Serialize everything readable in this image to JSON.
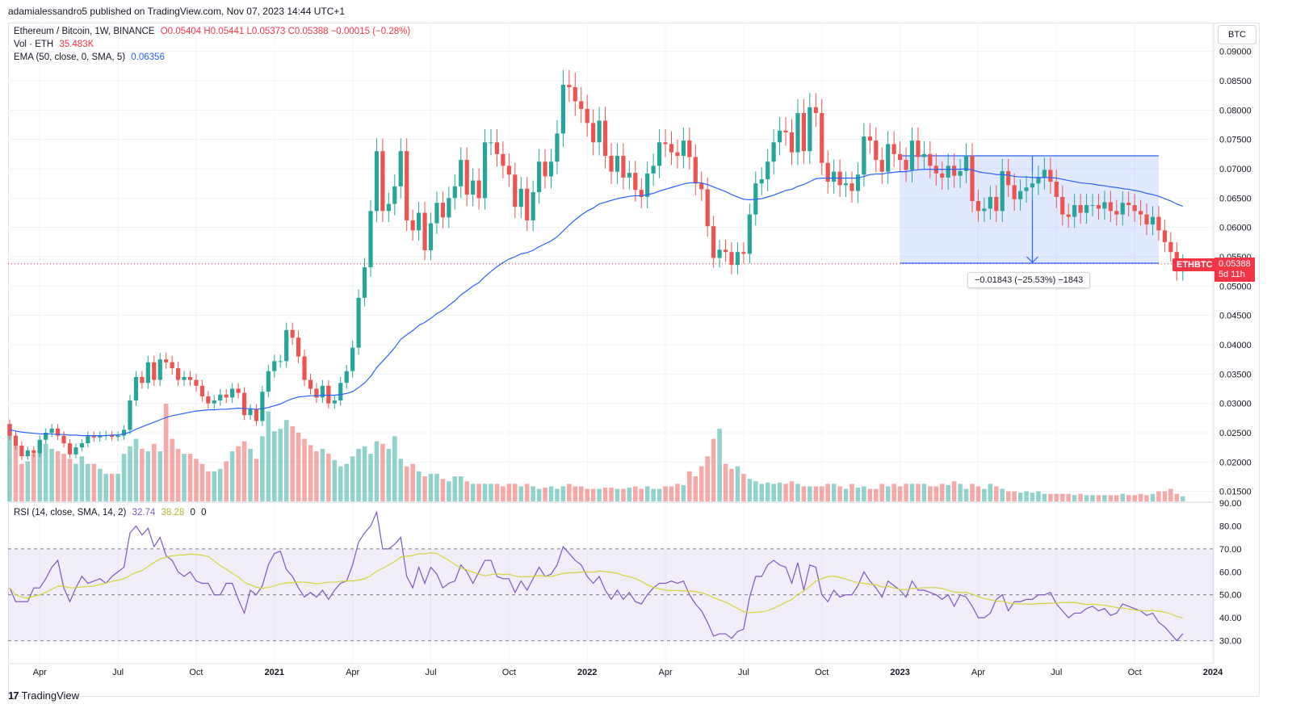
{
  "header": {
    "publish_line": "adamialessandro5 published on TradingView.com, Nov 07, 2023 14:44 UTC+1"
  },
  "legend": {
    "symbol": "Ethereum / Bitcoin, 1W, BINANCE",
    "ohlc": "O0.05404 H0.05441 L0.05373 C0.05388 −0.00015 (−0.28%)",
    "vol_label": "Vol · ETH",
    "vol_value": "35.483K",
    "ema_label": "EMA (50, close, 0, SMA, 5)",
    "ema_value": "0.06356",
    "rsi_label": "RSI (14, close, SMA, 14, 2)",
    "rsi_value": "32.74",
    "rsi_ma_value": "38.28",
    "rsi_extra_1": "0",
    "rsi_extra_2": "0"
  },
  "currency_button": "BTC",
  "price_tags": {
    "symbol": "ETHBTC",
    "price": "0.05388",
    "countdown": "5d 11h"
  },
  "measure_label": "−0.01843 (−25.53%) −1843",
  "branding": {
    "logo_text": "TradingView"
  },
  "colors": {
    "up": "#26a69a",
    "down": "#ef5350",
    "ema": "#2962ff",
    "rsi": "#7e57c2",
    "rsi_ma": "#d4d43a",
    "range_fill": "#2962ff"
  },
  "chart_data": {
    "type": "candlestick",
    "price_axis": {
      "ticks": [
        "0.09000",
        "0.08500",
        "0.08000",
        "0.07500",
        "0.07000",
        "0.06500",
        "0.06000",
        "0.05500",
        "0.05000",
        "0.04500",
        "0.04000",
        "0.03500",
        "0.03000",
        "0.02500",
        "0.02000",
        "0.01500"
      ],
      "range": [
        0.0133,
        0.0967
      ]
    },
    "rsi_axis": {
      "ticks": [
        "90.00",
        "80.00",
        "70.00",
        "60.00",
        "50.00",
        "40.00",
        "30.00"
      ],
      "range": [
        20,
        90
      ],
      "bands": [
        30,
        50,
        70
      ]
    },
    "time_axis": {
      "labels": [
        "Apr",
        "Jul",
        "Oct",
        "2021",
        "Apr",
        "Jul",
        "Oct",
        "2022",
        "Apr",
        "Jul",
        "Oct",
        "2023",
        "Apr",
        "Jul",
        "Oct",
        "2024"
      ],
      "week_index": [
        5,
        18,
        31,
        44,
        57,
        70,
        83,
        96,
        109,
        122,
        135,
        148,
        161,
        174,
        187,
        200
      ]
    },
    "close": [
      0.0245,
      0.0228,
      0.021,
      0.022,
      0.0215,
      0.0238,
      0.025,
      0.0257,
      0.0245,
      0.0232,
      0.0213,
      0.0225,
      0.0232,
      0.0245,
      0.0242,
      0.0245,
      0.0246,
      0.0243,
      0.0245,
      0.0255,
      0.0305,
      0.0345,
      0.0335,
      0.037,
      0.034,
      0.0375,
      0.037,
      0.036,
      0.034,
      0.0345,
      0.034,
      0.033,
      0.0312,
      0.03,
      0.0305,
      0.0315,
      0.031,
      0.0325,
      0.0318,
      0.028,
      0.029,
      0.027,
      0.032,
      0.0355,
      0.0372,
      0.0372,
      0.0425,
      0.0412,
      0.038,
      0.034,
      0.0325,
      0.031,
      0.033,
      0.03,
      0.0305,
      0.0335,
      0.0355,
      0.0395,
      0.048,
      0.0532,
      0.0628,
      0.073,
      0.0628,
      0.064,
      0.067,
      0.073,
      0.0612,
      0.0595,
      0.0625,
      0.0561,
      0.0607,
      0.0642,
      0.0617,
      0.065,
      0.067,
      0.0715,
      0.0656,
      0.068,
      0.065,
      0.0745,
      0.0745,
      0.0725,
      0.0705,
      0.069,
      0.0635,
      0.0666,
      0.0612,
      0.066,
      0.0712,
      0.0687,
      0.0712,
      0.076,
      0.0843,
      0.0839,
      0.0815,
      0.0802,
      0.0778,
      0.0745,
      0.0782,
      0.0722,
      0.0695,
      0.0722,
      0.0685,
      0.0693,
      0.0664,
      0.0652,
      0.0692,
      0.0705,
      0.0745,
      0.0742,
      0.0728,
      0.0722,
      0.0748,
      0.072,
      0.0675,
      0.0665,
      0.0602,
      0.0548,
      0.0562,
      0.0558,
      0.0536,
      0.0558,
      0.0555,
      0.0622,
      0.0675,
      0.0682,
      0.0712,
      0.0745,
      0.0765,
      0.0762,
      0.0728,
      0.0795,
      0.073,
      0.0805,
      0.0795,
      0.071,
      0.0678,
      0.0695,
      0.0672,
      0.0675,
      0.0662,
      0.069,
      0.0755,
      0.0748,
      0.0715,
      0.0695,
      0.0742,
      0.0725,
      0.0715,
      0.0698,
      0.0748,
      0.072,
      0.0725,
      0.0705,
      0.0692,
      0.0685,
      0.0705,
      0.0688,
      0.0696,
      0.0722,
      0.0645,
      0.0628,
      0.0632,
      0.0652,
      0.0628,
      0.0696,
      0.0672,
      0.0648,
      0.0662,
      0.0668,
      0.0675,
      0.0685,
      0.0698,
      0.0678,
      0.0652,
      0.0622,
      0.0618,
      0.0638,
      0.0625,
      0.0638,
      0.0638,
      0.0632,
      0.0643,
      0.0628,
      0.0622,
      0.0642,
      0.0638,
      0.0628,
      0.0622,
      0.0605,
      0.0618,
      0.0595,
      0.0575,
      0.0558,
      0.0525,
      0.0538
    ],
    "ema": [
      0.0255,
      0.0253,
      0.0251,
      0.025,
      0.0249,
      0.0248,
      0.0248,
      0.0248,
      0.0247,
      0.0247,
      0.0246,
      0.0246,
      0.0245,
      0.0245,
      0.0245,
      0.0245,
      0.0245,
      0.0246,
      0.0246,
      0.0248,
      0.0251,
      0.0256,
      0.026,
      0.0264,
      0.0268,
      0.0272,
      0.0276,
      0.0279,
      0.0281,
      0.0283,
      0.0285,
      0.0287,
      0.0288,
      0.0289,
      0.0289,
      0.029,
      0.029,
      0.0291,
      0.0292,
      0.0291,
      0.0291,
      0.029,
      0.0291,
      0.0293,
      0.0296,
      0.0299,
      0.0304,
      0.0308,
      0.0311,
      0.0312,
      0.0313,
      0.0313,
      0.0314,
      0.0314,
      0.0314,
      0.0315,
      0.0317,
      0.032,
      0.0327,
      0.0335,
      0.0346,
      0.0361,
      0.0372,
      0.0383,
      0.0395,
      0.0409,
      0.0417,
      0.0424,
      0.0433,
      0.0438,
      0.0445,
      0.0453,
      0.0459,
      0.0467,
      0.0475,
      0.0485,
      0.0492,
      0.05,
      0.0506,
      0.0516,
      0.0525,
      0.0533,
      0.054,
      0.0546,
      0.055,
      0.0555,
      0.0557,
      0.0561,
      0.0567,
      0.0572,
      0.0577,
      0.0584,
      0.0594,
      0.0604,
      0.0613,
      0.0621,
      0.0628,
      0.0633,
      0.064,
      0.0643,
      0.0646,
      0.0649,
      0.0651,
      0.0653,
      0.0654,
      0.0654,
      0.0656,
      0.0658,
      0.0662,
      0.0665,
      0.0668,
      0.0671,
      0.0674,
      0.0676,
      0.0676,
      0.0676,
      0.0673,
      0.0669,
      0.0665,
      0.0661,
      0.0656,
      0.0652,
      0.0648,
      0.0647,
      0.0648,
      0.0649,
      0.0652,
      0.0655,
      0.0659,
      0.0663,
      0.0665,
      0.067,
      0.0673,
      0.0678,
      0.0683,
      0.0684,
      0.0684,
      0.0684,
      0.0684,
      0.0684,
      0.0684,
      0.0684,
      0.0687,
      0.069,
      0.0691,
      0.0691,
      0.0693,
      0.0694,
      0.0695,
      0.0695,
      0.0697,
      0.0698,
      0.0699,
      0.0699,
      0.0699,
      0.0699,
      0.0699,
      0.0699,
      0.0699,
      0.07,
      0.0698,
      0.0695,
      0.0693,
      0.0692,
      0.069,
      0.069,
      0.0689,
      0.0687,
      0.0686,
      0.0686,
      0.0685,
      0.0685,
      0.0685,
      0.0685,
      0.0684,
      0.0682,
      0.068,
      0.0678,
      0.0676,
      0.0675,
      0.0674,
      0.0672,
      0.0671,
      0.0669,
      0.0668,
      0.0666,
      0.0665,
      0.0663,
      0.0661,
      0.0658,
      0.0656,
      0.0653,
      0.0649,
      0.0645,
      0.064,
      0.0636
    ],
    "volume_rel": [
      0.62,
      0.45,
      0.3,
      0.32,
      0.38,
      0.48,
      0.46,
      0.42,
      0.4,
      0.38,
      0.34,
      0.3,
      0.36,
      0.3,
      0.3,
      0.26,
      0.22,
      0.22,
      0.22,
      0.38,
      0.44,
      0.5,
      0.42,
      0.4,
      0.46,
      0.4,
      0.78,
      0.5,
      0.42,
      0.38,
      0.38,
      0.34,
      0.3,
      0.24,
      0.24,
      0.26,
      0.32,
      0.4,
      0.44,
      0.48,
      0.42,
      0.34,
      0.52,
      0.72,
      0.56,
      0.58,
      0.65,
      0.6,
      0.55,
      0.5,
      0.45,
      0.4,
      0.42,
      0.38,
      0.33,
      0.28,
      0.3,
      0.36,
      0.42,
      0.44,
      0.38,
      0.48,
      0.46,
      0.42,
      0.52,
      0.34,
      0.28,
      0.3,
      0.24,
      0.2,
      0.22,
      0.22,
      0.18,
      0.16,
      0.2,
      0.2,
      0.16,
      0.14,
      0.14,
      0.14,
      0.14,
      0.14,
      0.12,
      0.14,
      0.14,
      0.12,
      0.14,
      0.12,
      0.1,
      0.11,
      0.12,
      0.1,
      0.12,
      0.14,
      0.12,
      0.12,
      0.1,
      0.1,
      0.1,
      0.11,
      0.11,
      0.1,
      0.1,
      0.11,
      0.12,
      0.1,
      0.12,
      0.1,
      0.1,
      0.12,
      0.12,
      0.14,
      0.13,
      0.24,
      0.2,
      0.28,
      0.36,
      0.5,
      0.58,
      0.3,
      0.26,
      0.28,
      0.22,
      0.18,
      0.16,
      0.14,
      0.15,
      0.14,
      0.15,
      0.14,
      0.16,
      0.14,
      0.12,
      0.12,
      0.12,
      0.12,
      0.14,
      0.14,
      0.12,
      0.1,
      0.14,
      0.11,
      0.12,
      0.1,
      0.1,
      0.14,
      0.12,
      0.14,
      0.12,
      0.14,
      0.14,
      0.14,
      0.14,
      0.12,
      0.12,
      0.14,
      0.13,
      0.16,
      0.14,
      0.1,
      0.14,
      0.12,
      0.1,
      0.14,
      0.12,
      0.1,
      0.08,
      0.08,
      0.07,
      0.08,
      0.07,
      0.08,
      0.06,
      0.06,
      0.06,
      0.06,
      0.06,
      0.05,
      0.06,
      0.05,
      0.05,
      0.05,
      0.05,
      0.05,
      0.05,
      0.06,
      0.05,
      0.05,
      0.06,
      0.05,
      0.06,
      0.08,
      0.08,
      0.1,
      0.06,
      0.04
    ],
    "rsi": [
      53,
      47,
      47,
      47,
      53,
      53,
      57,
      62,
      65,
      53,
      47,
      53,
      58,
      55,
      56,
      57,
      55,
      58,
      60,
      62,
      77,
      80,
      76,
      79,
      71,
      75,
      67,
      65,
      60,
      58,
      60,
      56,
      55,
      55,
      50,
      50,
      55,
      55,
      48,
      42,
      52,
      50,
      54,
      63,
      68,
      69,
      61,
      58,
      53,
      49,
      51,
      49,
      52,
      48,
      52,
      55,
      56,
      63,
      73,
      77,
      80,
      86,
      70,
      70,
      72,
      75,
      58,
      53,
      62,
      55,
      62,
      59,
      53,
      55,
      56,
      63,
      60,
      55,
      60,
      65,
      65,
      58,
      57,
      57,
      51,
      56,
      52,
      57,
      62,
      58,
      59,
      63,
      71,
      68,
      65,
      63,
      58,
      55,
      58,
      52,
      48,
      52,
      48,
      51,
      47,
      46,
      50,
      53,
      55,
      55,
      56,
      55,
      56,
      50,
      46,
      43,
      38,
      32,
      33,
      33,
      31,
      34,
      35,
      49,
      58,
      58,
      63,
      65,
      63,
      62,
      55,
      64,
      52,
      63,
      62,
      50,
      47,
      52,
      49,
      50,
      50,
      54,
      60,
      56,
      53,
      49,
      56,
      54,
      52,
      49,
      56,
      52,
      52,
      51,
      50,
      48,
      50,
      45,
      50,
      49,
      45,
      40,
      40,
      42,
      48,
      50,
      43,
      47,
      47,
      48,
      48,
      50,
      50,
      51,
      46,
      43,
      40,
      42,
      42,
      44,
      45,
      43,
      44,
      41,
      42,
      46,
      45,
      44,
      43,
      41,
      42,
      38,
      36,
      33,
      30,
      33
    ]
  }
}
